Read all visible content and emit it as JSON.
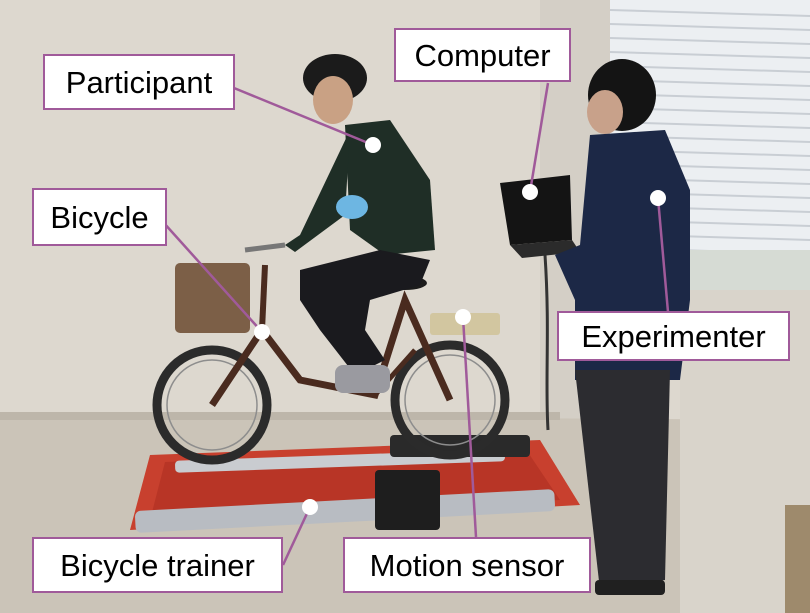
{
  "labels": {
    "participant": "Participant",
    "computer": "Computer",
    "bicycle": "Bicycle",
    "experimenter": "Experimenter",
    "bicycle_trainer": "Bicycle trainer",
    "motion_sensor": "Motion sensor"
  },
  "colors": {
    "callout_border": "#a05a9a",
    "callout_line": "#a05a9a",
    "marker_dot": "#ffffff"
  }
}
